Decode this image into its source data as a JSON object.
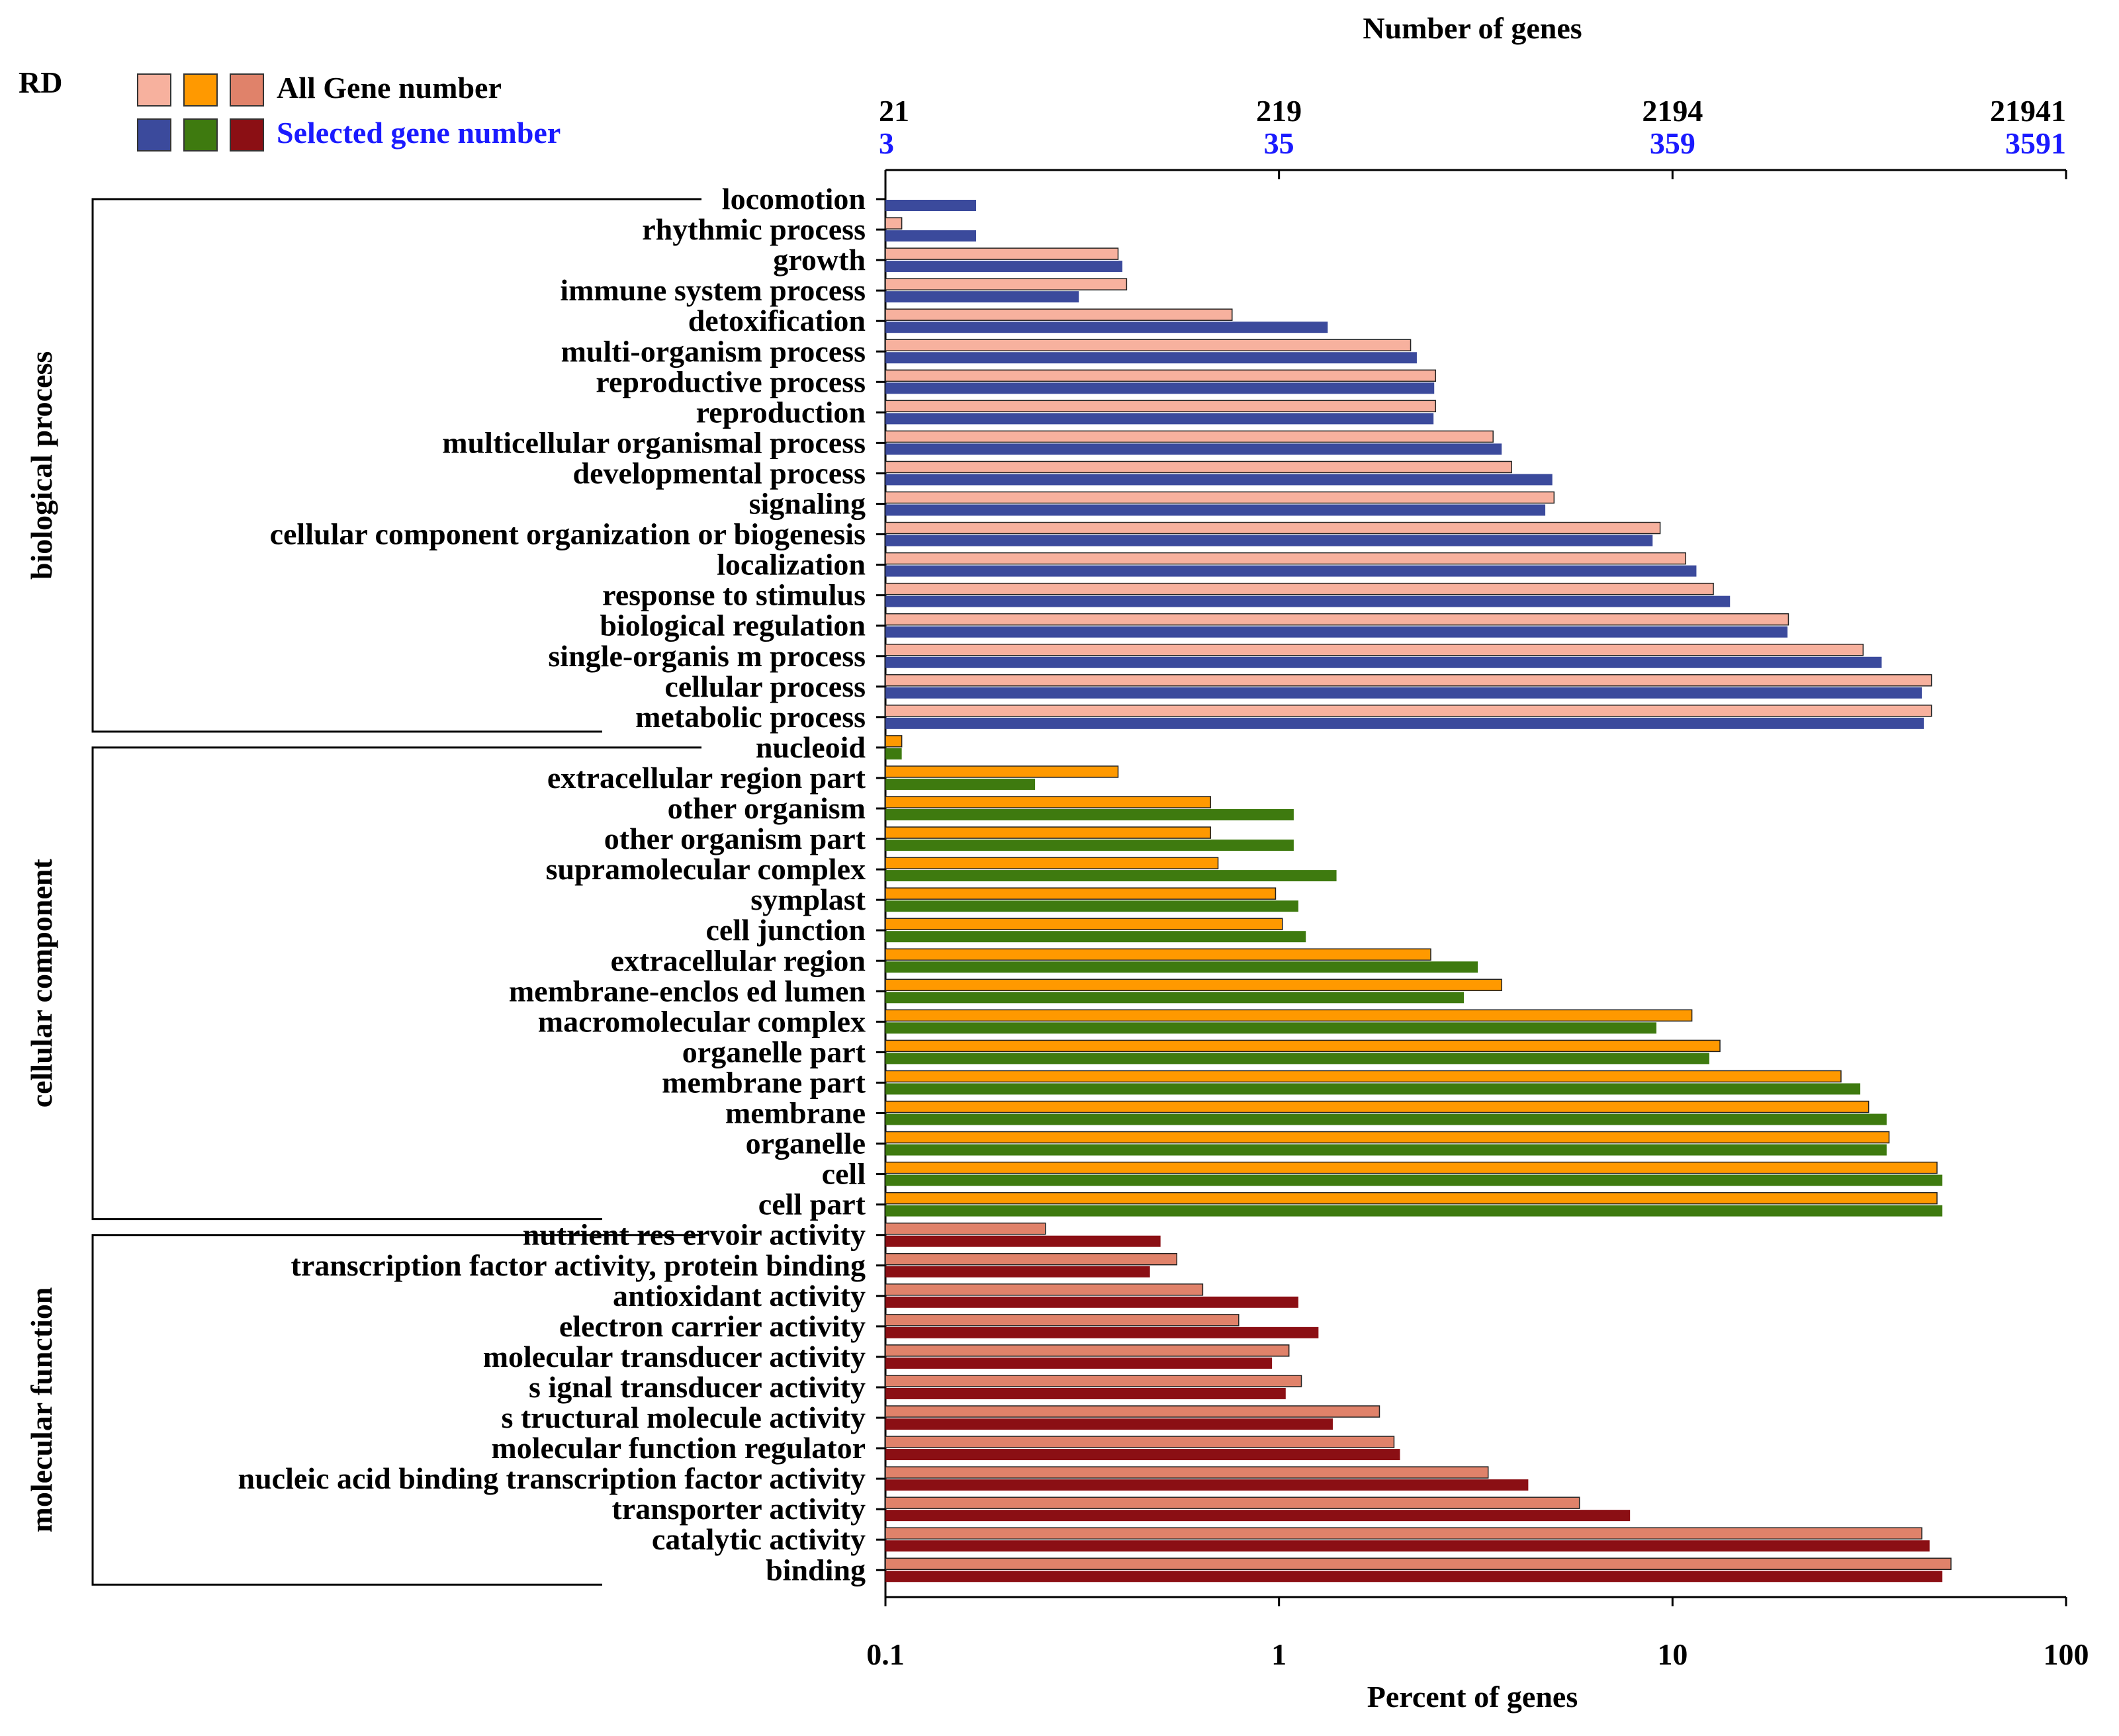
{
  "chart_data": {
    "type": "bar",
    "orientation": "horizontal",
    "corner_label": "RD",
    "top_axis_title": "Number of genes",
    "xlabel": "Percent of genes",
    "x_scale": "log",
    "xlim": [
      0.1,
      100
    ],
    "x_ticks": [
      {
        "value": 0.1,
        "label": "0.1"
      },
      {
        "value": 1,
        "label": "1"
      },
      {
        "value": 10,
        "label": "10"
      },
      {
        "value": 100,
        "label": "100"
      }
    ],
    "top_ticks": [
      {
        "value": 0.1,
        "all": "21",
        "selected": "3"
      },
      {
        "value": 1,
        "all": "219",
        "selected": "35"
      },
      {
        "value": 10,
        "all": "2194",
        "selected": "359"
      },
      {
        "value": 100,
        "all": "21941",
        "selected": "3591"
      }
    ],
    "legend": {
      "position": "top-left",
      "all_label": "All Gene  number",
      "selected_label": "Selected   gene   number",
      "all_colors": [
        "#F7B19E",
        "#FF9900",
        "#E0826A"
      ],
      "selected_colors": [
        "#3B4A9C",
        "#3E7A0F",
        "#8B0F14"
      ]
    },
    "series": [
      {
        "name": "All Gene number"
      },
      {
        "name": "Selected gene number"
      }
    ],
    "groups": [
      {
        "name": "biological process",
        "color_all": "#F7B19E",
        "color_selected": "#3B4A9C",
        "categories": [
          {
            "label": "locomotion",
            "all": null,
            "selected": 0.17
          },
          {
            "label": "rhythmic   process",
            "all": 0.11,
            "selected": 0.17
          },
          {
            "label": "growth",
            "all": 0.39,
            "selected": 0.4
          },
          {
            "label": "immune   system   process",
            "all": 0.41,
            "selected": 0.31
          },
          {
            "label": "detoxification",
            "all": 0.76,
            "selected": 1.33
          },
          {
            "label": "multi-organism   process",
            "all": 2.16,
            "selected": 2.24
          },
          {
            "label": "reproductive   process",
            "all": 2.5,
            "selected": 2.48
          },
          {
            "label": "reproduction",
            "all": 2.5,
            "selected": 2.47
          },
          {
            "label": "multicellular organismal   process",
            "all": 3.5,
            "selected": 3.68
          },
          {
            "label": "developmental   process",
            "all": 3.9,
            "selected": 4.95
          },
          {
            "label": "signaling",
            "all": 5.0,
            "selected": 4.75
          },
          {
            "label": "cellular component organization or biogenesis",
            "all": 9.3,
            "selected": 8.9
          },
          {
            "label": "localization",
            "all": 10.8,
            "selected": 11.5
          },
          {
            "label": "response to  stimulus",
            "all": 12.7,
            "selected": 14.0
          },
          {
            "label": "biological   regulation",
            "all": 19.7,
            "selected": 19.6
          },
          {
            "label": "single-organis m  process",
            "all": 30.5,
            "selected": 34.0
          },
          {
            "label": "cellular  process",
            "all": 45.5,
            "selected": 43.0
          },
          {
            "label": "metabolic   process",
            "all": 45.5,
            "selected": 43.5
          }
        ]
      },
      {
        "name": "cellular  component",
        "color_all": "#FF9900",
        "color_selected": "#3E7A0F",
        "categories": [
          {
            "label": "nucleoid",
            "all": 0.11,
            "selected": 0.11
          },
          {
            "label": "extracellular region part",
            "all": 0.39,
            "selected": 0.24
          },
          {
            "label": "other organism",
            "all": 0.67,
            "selected": 1.09
          },
          {
            "label": "other organism  part",
            "all": 0.67,
            "selected": 1.09
          },
          {
            "label": "supramolecular  complex",
            "all": 0.7,
            "selected": 1.4
          },
          {
            "label": "symplast",
            "all": 0.98,
            "selected": 1.12
          },
          {
            "label": "cell  junction",
            "all": 1.02,
            "selected": 1.17
          },
          {
            "label": "extracellular region",
            "all": 2.43,
            "selected": 3.2
          },
          {
            "label": "membrane-enclos ed  lumen",
            "all": 3.68,
            "selected": 2.95
          },
          {
            "label": "macromolecular complex",
            "all": 11.2,
            "selected": 9.1
          },
          {
            "label": "organelle  part",
            "all": 13.2,
            "selected": 12.4
          },
          {
            "label": "membrane  part",
            "all": 26.8,
            "selected": 30.0
          },
          {
            "label": "membrane",
            "all": 31.5,
            "selected": 35.0
          },
          {
            "label": "organelle",
            "all": 35.5,
            "selected": 35.0
          },
          {
            "label": "cell",
            "all": 47.0,
            "selected": 48.5
          },
          {
            "label": "cell part",
            "all": 47.0,
            "selected": 48.5
          }
        ]
      },
      {
        "name": "molecular  function",
        "color_all": "#E0826A",
        "color_selected": "#8B0F14",
        "categories": [
          {
            "label": "nutrient res ervoir activity",
            "all": 0.255,
            "selected": 0.5
          },
          {
            "label": "transcription  factor activity, protein binding",
            "all": 0.55,
            "selected": 0.47
          },
          {
            "label": "antioxidant activity",
            "all": 0.64,
            "selected": 1.12
          },
          {
            "label": "electron  carrier activity",
            "all": 0.79,
            "selected": 1.26
          },
          {
            "label": "molecular transducer activity",
            "all": 1.06,
            "selected": 0.96
          },
          {
            "label": "s ignal transducer activity",
            "all": 1.14,
            "selected": 1.04
          },
          {
            "label": "s tructural molecule activity",
            "all": 1.8,
            "selected": 1.37
          },
          {
            "label": "molecular function  regulator",
            "all": 1.96,
            "selected": 2.03
          },
          {
            "label": "nucleic acid binding  transcription  factor activity",
            "all": 3.4,
            "selected": 4.3
          },
          {
            "label": "transporter activity",
            "all": 5.8,
            "selected": 7.8
          },
          {
            "label": "catalytic activity",
            "all": 43.0,
            "selected": 45.0
          },
          {
            "label": "binding",
            "all": 51.0,
            "selected": 48.5
          }
        ]
      }
    ]
  }
}
